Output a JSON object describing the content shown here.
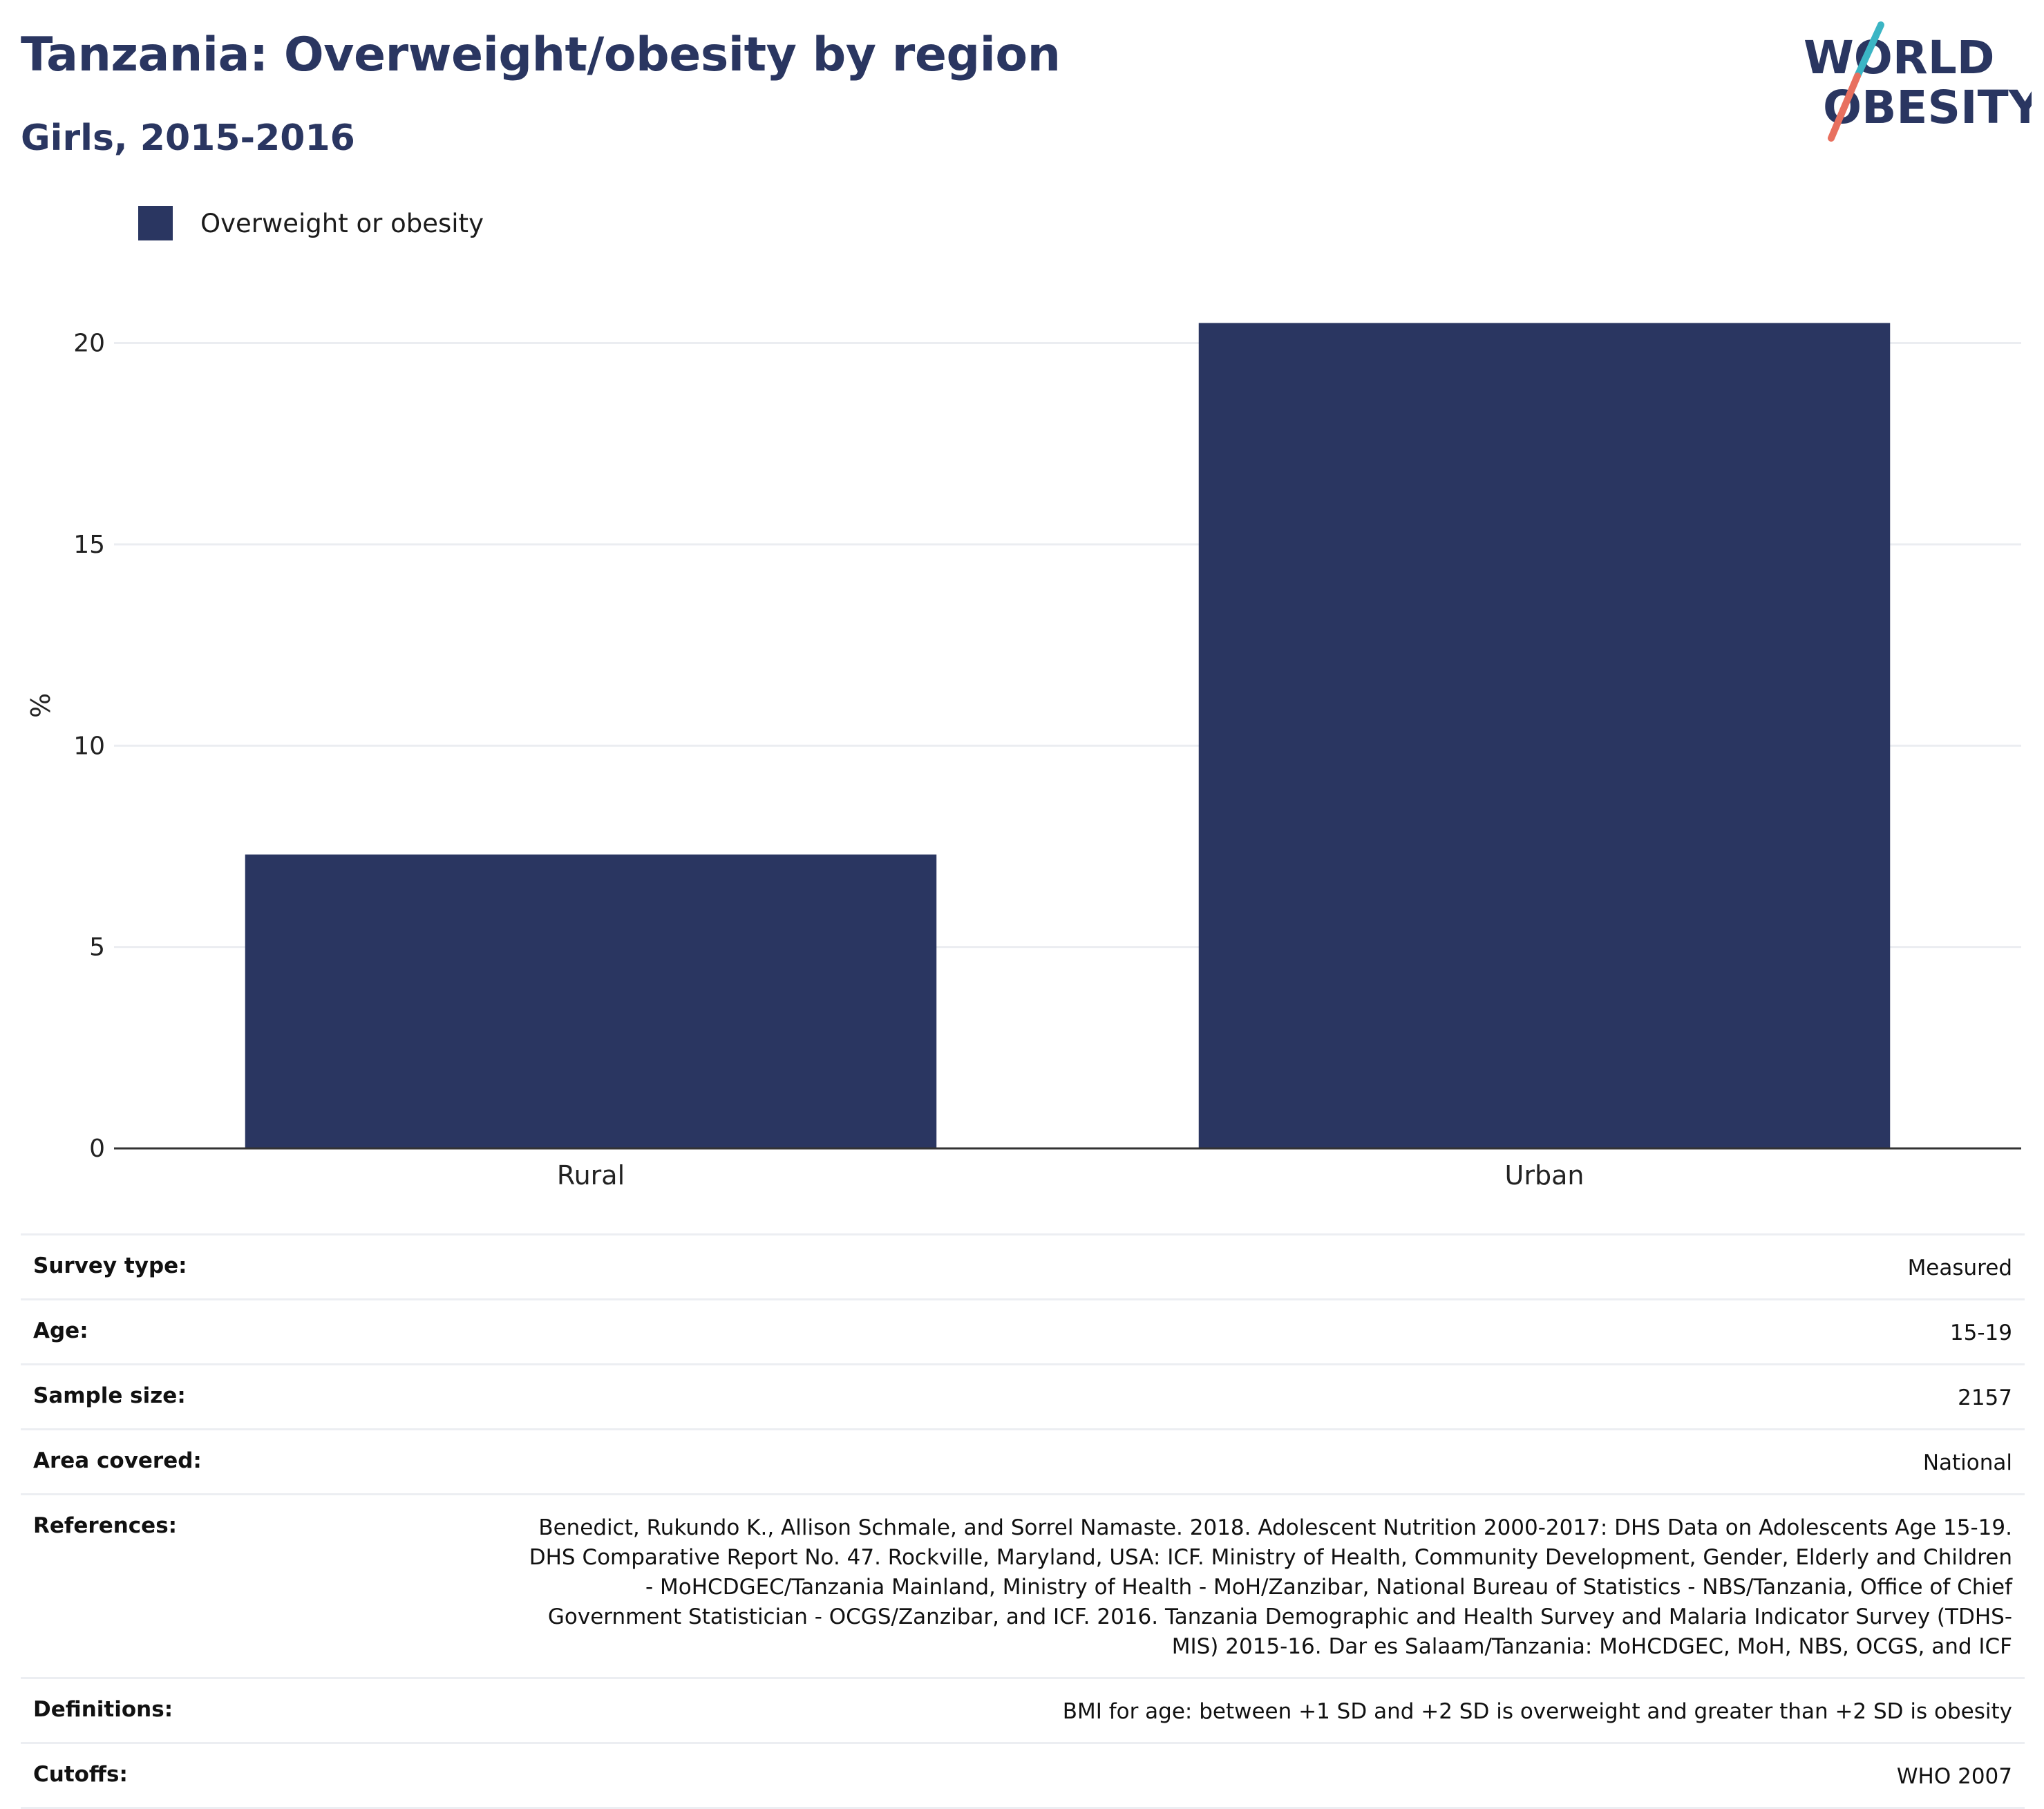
{
  "header": {
    "title": "Tanzania: Overweight/obesity by region",
    "subtitle": "Girls, 2015-2016"
  },
  "logo": {
    "line1": "WORLD",
    "line2": "OBESITY",
    "accent_teal": "#3bb5c4",
    "accent_coral": "#e8705f"
  },
  "legend": {
    "items": [
      {
        "label": "Overweight or obesity",
        "color": "#2a3661"
      }
    ]
  },
  "chart_data": {
    "type": "bar",
    "categories": [
      "Rural",
      "Urban"
    ],
    "series": [
      {
        "name": "Overweight or obesity",
        "values": [
          7.3,
          20.5
        ],
        "color": "#2a3661"
      }
    ],
    "ylabel": "%",
    "xlabel": "",
    "ylim": [
      0,
      22
    ],
    "yticks": [
      0,
      5,
      10,
      15,
      20
    ],
    "grid": true
  },
  "details": {
    "rows": [
      {
        "label": "Survey type:",
        "value": "Measured"
      },
      {
        "label": "Age:",
        "value": "15-19"
      },
      {
        "label": "Sample size:",
        "value": "2157"
      },
      {
        "label": "Area covered:",
        "value": "National"
      },
      {
        "label": "References:",
        "value": "Benedict, Rukundo K., Allison Schmale, and Sorrel Namaste. 2018. Adolescent Nutrition 2000-2017: DHS Data on Adolescents Age 15-19. DHS Comparative Report No. 47. Rockville, Maryland, USA: ICF. Ministry of Health, Community Development, Gender, Elderly and Children - MoHCDGEC/Tanzania Mainland, Ministry of Health - MoH/Zanzibar, National Bureau of Statistics - NBS/Tanzania, Office of Chief Government Statistician - OCGS/Zanzibar, and ICF. 2016. Tanzania Demographic and Health Survey and Malaria Indicator Survey (TDHS-MIS) 2015-16. Dar es Salaam/Tanzania: MoHCDGEC, MoH, NBS, OCGS, and ICF"
      },
      {
        "label": "Definitions:",
        "value": "BMI for age: between +1 SD and +2 SD is overweight and greater than +2 SD is obesity"
      },
      {
        "label": "Cutoffs:",
        "value": "WHO 2007"
      }
    ]
  }
}
